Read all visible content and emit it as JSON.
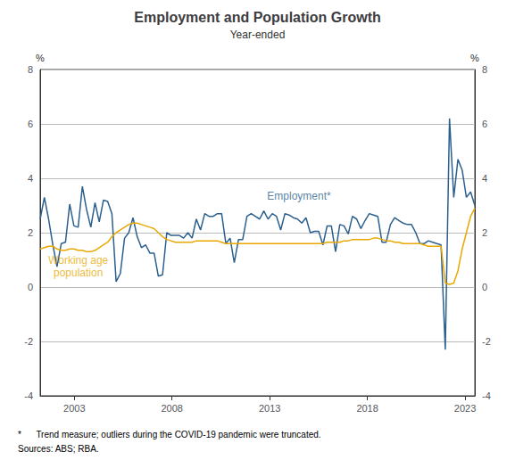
{
  "chart_data": {
    "type": "line",
    "title": "Employment and Population Growth",
    "subtitle": "Year-ended",
    "x": [
      2001.25,
      2001.466,
      2001.682,
      2001.8981,
      2002.1141,
      2002.3301,
      2002.5461,
      2002.7621,
      2002.9782,
      2003.1942,
      2003.4102,
      2003.6262,
      2003.8422,
      2004.0583,
      2004.2743,
      2004.4903,
      2004.7063,
      2004.9223,
      2005.1383,
      2005.3544,
      2005.5704,
      2005.7864,
      2006.0024,
      2006.2184,
      2006.4345,
      2006.6505,
      2006.8665,
      2007.0825,
      2007.2985,
      2007.5146,
      2007.7306,
      2007.9466,
      2008.1626,
      2008.3786,
      2008.5947,
      2008.8107,
      2009.0267,
      2009.2427,
      2009.4587,
      2009.6748,
      2009.8908,
      2010.1068,
      2010.3228,
      2010.5388,
      2010.7549,
      2010.9709,
      2011.1869,
      2011.4029,
      2011.6189,
      2011.835,
      2012.051,
      2012.267,
      2012.483,
      2012.699,
      2012.915,
      2013.1311,
      2013.3471,
      2013.5631,
      2013.7791,
      2013.9951,
      2014.2112,
      2014.4272,
      2014.6432,
      2014.8592,
      2015.0752,
      2015.2913,
      2015.5073,
      2015.7233,
      2015.9393,
      2016.1553,
      2016.3714,
      2016.5874,
      2016.8034,
      2017.0194,
      2017.2354,
      2017.4515,
      2017.6675,
      2017.8835,
      2018.0995,
      2018.3155,
      2018.5316,
      2018.7476,
      2018.9636,
      2019.1796,
      2019.3956,
      2019.6117,
      2019.8277,
      2020.0437,
      2020.2597,
      2020.4757,
      2020.6917,
      2020.9078,
      2021.1238,
      2021.3398,
      2021.5558,
      2021.7718,
      2021.9879,
      2022.2039,
      2022.4199,
      2022.6359,
      2022.8519,
      2023.068,
      2023.284,
      2023.5
    ],
    "series": [
      {
        "name": "Employment*",
        "color": "#2B5F8E",
        "values": [
          2.5,
          3.3,
          2.5,
          1.55,
          0.75,
          1.6,
          1.65,
          3.05,
          2.25,
          2.2,
          3.7,
          2.85,
          2.2,
          3.1,
          2.4,
          3.2,
          3.15,
          2.7,
          0.2,
          0.5,
          1.8,
          2.0,
          2.55,
          1.85,
          1.45,
          1.55,
          1.25,
          1.25,
          0.4,
          0.45,
          2.0,
          1.9,
          1.9,
          1.9,
          1.8,
          2.0,
          1.8,
          2.5,
          2.1,
          2.7,
          2.6,
          2.6,
          2.7,
          2.7,
          1.6,
          1.8,
          0.9,
          1.75,
          1.75,
          2.6,
          2.7,
          2.6,
          2.5,
          2.8,
          2.5,
          2.7,
          2.6,
          2.1,
          2.7,
          2.65,
          2.55,
          2.5,
          2.35,
          2.55,
          2.0,
          2.05,
          2.05,
          1.55,
          2.25,
          2.25,
          1.3,
          2.3,
          2.25,
          1.95,
          2.6,
          2.5,
          2.15,
          2.45,
          2.7,
          2.65,
          2.6,
          1.65,
          1.65,
          2.3,
          2.55,
          2.45,
          2.35,
          2.3,
          2.3,
          2.0,
          1.6,
          1.6,
          1.7,
          1.65,
          1.6,
          1.55,
          -2.3,
          6.2,
          3.3,
          4.7,
          4.3,
          3.3,
          3.5,
          3.0
        ]
      },
      {
        "name": "Working age\npopulation",
        "color": "#E8A800",
        "values": [
          1.4,
          1.45,
          1.5,
          1.5,
          1.4,
          1.35,
          1.35,
          1.4,
          1.4,
          1.35,
          1.35,
          1.3,
          1.3,
          1.35,
          1.45,
          1.55,
          1.65,
          1.85,
          2.0,
          2.1,
          2.2,
          2.3,
          2.35,
          2.35,
          2.3,
          2.25,
          2.2,
          2.15,
          2.0,
          1.85,
          1.75,
          1.7,
          1.65,
          1.65,
          1.65,
          1.65,
          1.65,
          1.7,
          1.7,
          1.7,
          1.7,
          1.7,
          1.7,
          1.65,
          1.6,
          1.6,
          1.6,
          1.6,
          1.6,
          1.6,
          1.6,
          1.6,
          1.6,
          1.6,
          1.6,
          1.6,
          1.6,
          1.6,
          1.6,
          1.6,
          1.6,
          1.6,
          1.6,
          1.6,
          1.6,
          1.6,
          1.6,
          1.6,
          1.65,
          1.65,
          1.65,
          1.65,
          1.7,
          1.7,
          1.75,
          1.75,
          1.75,
          1.75,
          1.75,
          1.8,
          1.8,
          1.75,
          1.7,
          1.7,
          1.65,
          1.65,
          1.6,
          1.6,
          1.6,
          1.6,
          1.6,
          1.55,
          1.5,
          1.5,
          1.5,
          1.5,
          0.15,
          0.1,
          0.15,
          0.6,
          1.4,
          2.0,
          2.6,
          2.9
        ]
      }
    ],
    "xlim": [
      2001.25,
      2023.5
    ],
    "xticks": [
      2003,
      2008,
      2013,
      2018,
      2023
    ],
    "ylim": [
      -4,
      8
    ],
    "yticks": [
      -4,
      -2,
      0,
      2,
      4,
      6,
      8
    ],
    "y2lim": [
      -4,
      8
    ],
    "y2ticks": [
      -4,
      -2,
      0,
      2,
      4,
      6,
      8
    ],
    "ylabel": "%",
    "y2label": "%",
    "grid": true,
    "annotations": [
      {
        "text": "Employment*",
        "x": 2014.5,
        "y": 3.35,
        "color": "#2B5F8E"
      },
      {
        "text": "Working age\npopulation",
        "x": 2003.2,
        "y": 0.75,
        "color": "#E8A800"
      }
    ],
    "footnotes": [
      "*      Trend measure; outliers during the COVID-19 pandemic were truncated.",
      "Sources: ABS; RBA."
    ]
  }
}
